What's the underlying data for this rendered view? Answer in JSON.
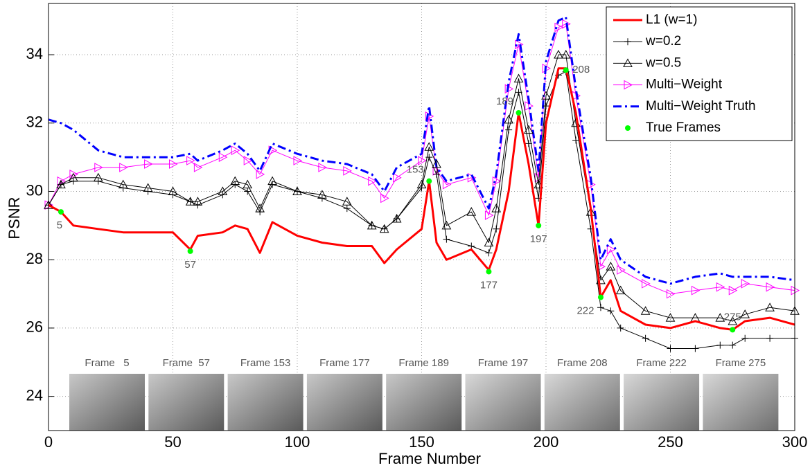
{
  "chart_data": {
    "type": "line",
    "xlabel": "Frame Number",
    "ylabel": "PSNR",
    "xlim": [
      0,
      300
    ],
    "xticks": [
      0,
      50,
      100,
      150,
      200,
      250,
      300
    ],
    "ylim": [
      23,
      35.5
    ],
    "yticks": [
      24,
      26,
      28,
      30,
      32,
      34
    ],
    "grid": true,
    "legend": "upper right",
    "x": [
      0,
      5,
      10,
      20,
      30,
      40,
      50,
      57,
      60,
      70,
      75,
      80,
      85,
      90,
      100,
      110,
      120,
      130,
      135,
      140,
      150,
      153,
      156,
      160,
      170,
      177,
      180,
      185,
      189,
      193,
      197,
      200,
      205,
      208,
      212,
      218,
      222,
      226,
      230,
      240,
      250,
      260,
      270,
      275,
      280,
      290,
      300
    ],
    "series": [
      {
        "name": "L1 (w=1)",
        "color": "#ff0000",
        "marker": "none",
        "linestyle": "solid",
        "linewidth": 3,
        "values": [
          29.6,
          29.4,
          29.0,
          28.9,
          28.8,
          28.8,
          28.8,
          28.3,
          28.7,
          28.8,
          29.0,
          28.9,
          28.2,
          29.1,
          28.7,
          28.5,
          28.4,
          28.4,
          27.9,
          28.3,
          28.9,
          30.3,
          28.5,
          28.0,
          28.3,
          27.7,
          28.3,
          30.0,
          32.3,
          30.8,
          29.0,
          32.0,
          33.6,
          33.6,
          32.3,
          29.5,
          26.9,
          27.4,
          26.5,
          26.1,
          26.0,
          26.2,
          26.0,
          25.95,
          26.2,
          26.3,
          26.1
        ]
      },
      {
        "name": "w=0.2",
        "color": "#000000",
        "marker": "plus",
        "linestyle": "solid",
        "linewidth": 1,
        "values": [
          29.6,
          30.2,
          30.3,
          30.3,
          30.1,
          30.0,
          29.9,
          29.7,
          29.6,
          29.9,
          30.2,
          30.0,
          29.4,
          30.2,
          30.0,
          29.8,
          29.5,
          29.0,
          28.9,
          29.2,
          30.1,
          31.0,
          30.5,
          28.6,
          28.4,
          28.2,
          28.9,
          31.8,
          32.9,
          31.4,
          29.8,
          32.5,
          33.4,
          33.5,
          31.5,
          28.9,
          26.6,
          26.5,
          26.0,
          25.7,
          25.4,
          25.4,
          25.5,
          25.5,
          25.7,
          25.7,
          25.7
        ]
      },
      {
        "name": "w=0.5",
        "color": "#000000",
        "marker": "triangle-up",
        "linestyle": "solid",
        "linewidth": 1,
        "values": [
          29.6,
          30.2,
          30.4,
          30.4,
          30.2,
          30.1,
          30.0,
          29.7,
          29.7,
          30.0,
          30.3,
          30.2,
          29.5,
          30.3,
          30.0,
          29.9,
          29.7,
          29.0,
          28.9,
          29.2,
          30.2,
          31.3,
          30.8,
          29.0,
          29.4,
          28.5,
          29.5,
          32.1,
          33.3,
          31.8,
          30.2,
          32.8,
          34.0,
          34.0,
          32.0,
          29.4,
          27.4,
          27.8,
          27.1,
          26.5,
          26.3,
          26.3,
          26.3,
          26.2,
          26.4,
          26.6,
          26.5
        ]
      },
      {
        "name": "Multi−Weight",
        "color": "#ff00ff",
        "marker": "triangle-right",
        "linestyle": "solid",
        "linewidth": 1,
        "values": [
          29.6,
          30.3,
          30.5,
          30.7,
          30.7,
          30.8,
          30.8,
          30.9,
          30.7,
          31.0,
          31.2,
          30.9,
          30.5,
          31.2,
          30.9,
          30.7,
          30.6,
          30.3,
          29.8,
          30.4,
          30.9,
          32.2,
          30.6,
          30.2,
          30.4,
          29.3,
          30.3,
          33.0,
          34.3,
          32.5,
          30.4,
          33.6,
          34.8,
          34.9,
          32.8,
          30.2,
          27.8,
          28.3,
          27.7,
          27.3,
          27.0,
          27.1,
          27.2,
          27.1,
          27.3,
          27.2,
          27.1
        ]
      },
      {
        "name": "Multi−Weight Truth",
        "color": "#0000ff",
        "marker": "none",
        "linestyle": "dashdot",
        "linewidth": 3,
        "values": [
          32.1,
          32.0,
          31.8,
          31.2,
          31.0,
          31.0,
          31.0,
          31.1,
          30.9,
          31.2,
          31.4,
          31.1,
          30.6,
          31.4,
          31.1,
          30.9,
          30.8,
          30.5,
          30.0,
          30.7,
          31.1,
          32.5,
          30.7,
          30.3,
          30.5,
          29.5,
          30.5,
          33.2,
          34.6,
          32.7,
          30.6,
          33.8,
          35.0,
          35.1,
          33.0,
          30.4,
          28.0,
          28.6,
          28.0,
          27.5,
          27.3,
          27.5,
          27.6,
          27.5,
          27.5,
          27.5,
          27.4
        ]
      },
      {
        "name": "True Frames",
        "color": "#00ff00",
        "marker": "dot",
        "linestyle": "none",
        "linewidth": 0,
        "x": [
          5,
          57,
          153,
          177,
          189,
          197,
          208,
          222,
          275
        ],
        "values": [
          29.4,
          28.25,
          30.3,
          27.65,
          32.3,
          29.0,
          33.55,
          26.9,
          25.95
        ]
      }
    ],
    "thumbnails": [
      "Frame   5",
      "Frame  57",
      "Frame 153",
      "Frame 177",
      "Frame 189",
      "Frame 197",
      "Frame 208",
      "Frame 222",
      "Frame 275"
    ]
  }
}
